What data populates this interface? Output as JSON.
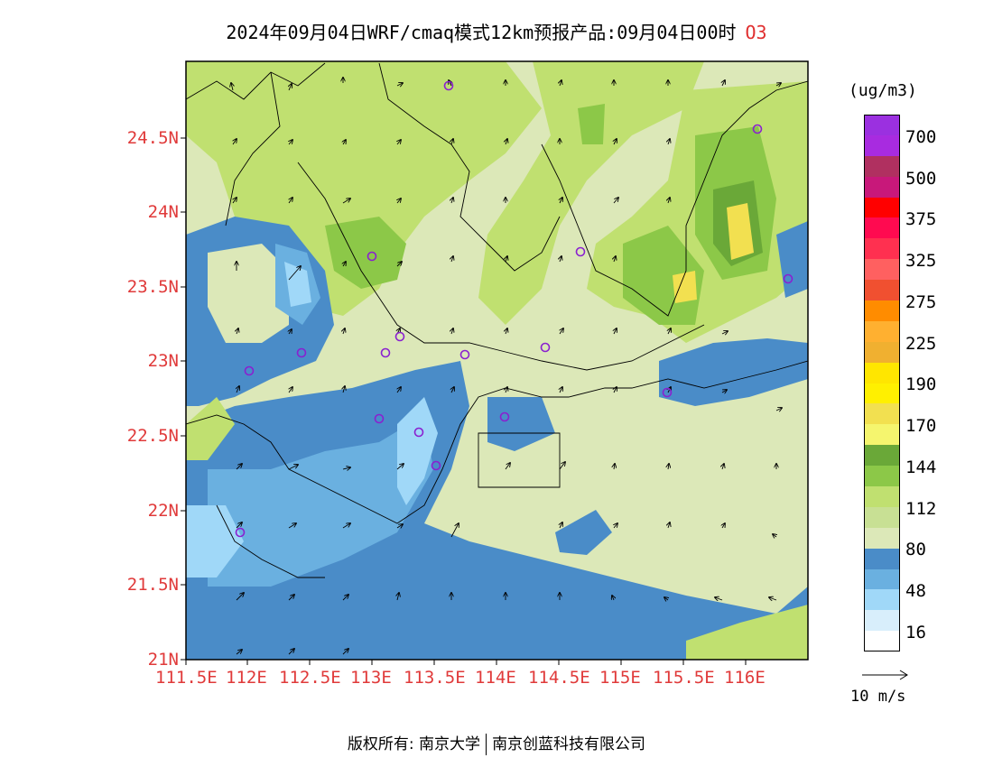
{
  "title": {
    "text": "2024年09月04日WRF/cmaq模式12km预报产品:09月04日00时",
    "species": "O3"
  },
  "legend": {
    "unit": "(ug/m3)",
    "colors": [
      "#9b30e0",
      "#a82be0",
      "#b03060",
      "#c8187a",
      "#ff0000",
      "#ff0a50",
      "#ff3050",
      "#ff6060",
      "#f05030",
      "#ff8c00",
      "#ffb030",
      "#f0b030",
      "#ffe600",
      "#fff000",
      "#f2e050",
      "#f5f56e",
      "#6aa838",
      "#8cc848",
      "#c0e070",
      "#c8e094",
      "#dce8b8",
      "#4a8cc8",
      "#6ab0e0",
      "#a0d8f8",
      "#d8eefb",
      "#ffffff"
    ],
    "labels": [
      "700",
      "500",
      "375",
      "325",
      "275",
      "225",
      "190",
      "170",
      "144",
      "112",
      "80",
      "48",
      "16"
    ]
  },
  "reference_vector": {
    "label": "10 m/s"
  },
  "axes": {
    "lat_labels": [
      "24.5N",
      "24N",
      "23.5N",
      "23N",
      "22.5N",
      "22N",
      "21.5N",
      "21N"
    ],
    "lon_labels": [
      "111.5E",
      "112E",
      "112.5E",
      "113E",
      "113.5E",
      "114E",
      "114.5E",
      "115E",
      "115.5E",
      "116E"
    ]
  },
  "footer": {
    "copyright": "版权所有: 南京大学",
    "partner": "南京创蓝科技有限公司"
  }
}
